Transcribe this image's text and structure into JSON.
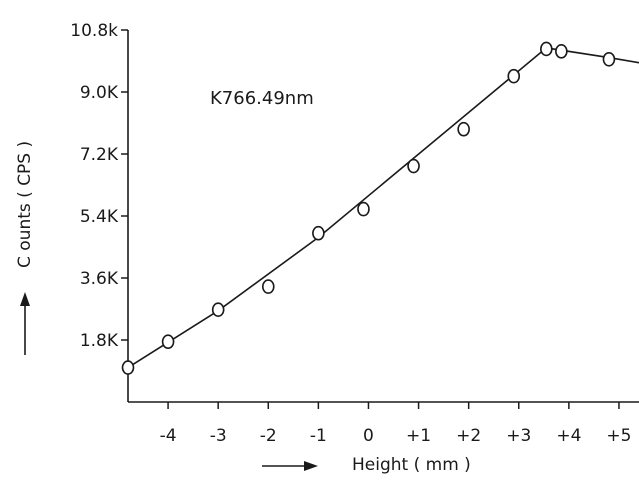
{
  "chart_data": {
    "type": "scatter",
    "title": "",
    "annotation": "K766.49nm",
    "xlabel": "Height ( mm )",
    "ylabel": "C ounts  ( CPS )",
    "x_ticks": [
      {
        "value": -4,
        "label": "-4"
      },
      {
        "value": -3,
        "label": "-3"
      },
      {
        "value": -2,
        "label": "-2"
      },
      {
        "value": -1,
        "label": "-1"
      },
      {
        "value": 0,
        "label": "0"
      },
      {
        "value": 1,
        "label": "+1"
      },
      {
        "value": 2,
        "label": "+2"
      },
      {
        "value": 3,
        "label": "+3"
      },
      {
        "value": 4,
        "label": "+4"
      },
      {
        "value": 5,
        "label": "+5"
      }
    ],
    "y_ticks": [
      {
        "value": 1800,
        "label": "1.8K"
      },
      {
        "value": 3600,
        "label": "3.6K"
      },
      {
        "value": 5400,
        "label": "5.4K"
      },
      {
        "value": 7200,
        "label": "7.2K"
      },
      {
        "value": 9000,
        "label": "9.0K"
      },
      {
        "value": 10800,
        "label": "10.8k"
      }
    ],
    "xlim": [
      -4.8,
      5.4
    ],
    "ylim": [
      0,
      10800
    ],
    "grid": false,
    "series": [
      {
        "points": [
          {
            "x": -4.8,
            "y": 1000
          },
          {
            "x": -4.0,
            "y": 1750
          },
          {
            "x": -3.0,
            "y": 2680
          },
          {
            "x": -2.0,
            "y": 3350
          },
          {
            "x": -1.0,
            "y": 4900
          },
          {
            "x": -0.1,
            "y": 5600
          },
          {
            "x": 0.9,
            "y": 6850
          },
          {
            "x": 1.9,
            "y": 7920
          },
          {
            "x": 2.9,
            "y": 9460
          },
          {
            "x": 3.55,
            "y": 10250
          },
          {
            "x": 3.85,
            "y": 10180
          },
          {
            "x": 4.8,
            "y": 9950
          }
        ],
        "fit": [
          {
            "x": -4.8,
            "y": 1000
          },
          {
            "x": -3.0,
            "y": 2650
          },
          {
            "x": -1.0,
            "y": 4780
          },
          {
            "x": 3.55,
            "y": 10280
          },
          {
            "x": 4.8,
            "y": 10000
          },
          {
            "x": 5.4,
            "y": 9850
          }
        ]
      }
    ]
  }
}
